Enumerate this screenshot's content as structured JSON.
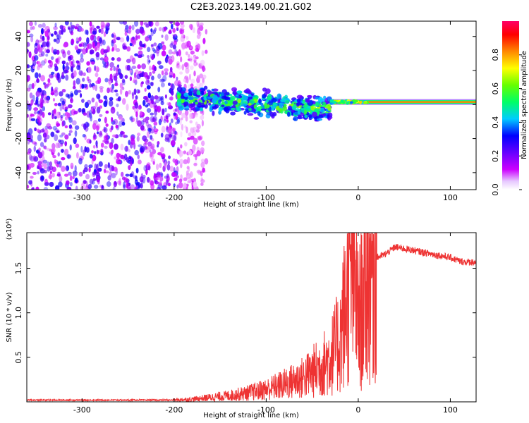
{
  "title": "C2E3.2023.149.00.21.G02",
  "chart_data": [
    {
      "type": "heatmap",
      "panel": "spectrogram",
      "xlabel": "Height of straight line (km)",
      "ylabel": "Frequency (Hz)",
      "xlim": [
        -360,
        128
      ],
      "ylim": [
        -50,
        49
      ],
      "xticks": [
        -300,
        -200,
        -100,
        0,
        100
      ],
      "xtick_labels": [
        "-300",
        "-200",
        "-100",
        "0",
        "100"
      ],
      "yticks": [
        -40,
        -20,
        0,
        20,
        40
      ],
      "ytick_labels": [
        "-40",
        "-20",
        "0",
        "20",
        "40"
      ],
      "colorbar": {
        "label": "Normalized spectral amplitude",
        "range": [
          0,
          1
        ],
        "ticks": [
          0.0,
          0.2,
          0.4,
          0.6,
          0.8
        ],
        "tick_labels": [
          "0.0",
          "0.2",
          "0.4",
          "0.6",
          "0.8"
        ],
        "colors": [
          "#ffffff",
          "#cc00ff",
          "#6600ff",
          "#0000ff",
          "#00ccff",
          "#00ff66",
          "#66ff00",
          "#ffff00",
          "#ff8800",
          "#ff0000",
          "#ff0066"
        ]
      },
      "regions": [
        {
          "name": "noise",
          "x_range": [
            -360,
            -195
          ],
          "freq_range": [
            -50,
            49
          ],
          "amplitude": 0.12
        },
        {
          "name": "transition",
          "x_range": [
            -195,
            -30
          ],
          "center_freq_start": 4,
          "center_freq_end": -3,
          "amplitude": 0.45
        },
        {
          "name": "tone",
          "x_range": [
            -30,
            128
          ],
          "center_freq": 1.5,
          "amplitude": 0.8
        }
      ]
    },
    {
      "type": "line",
      "panel": "snr",
      "xlabel": "Height of straight line (km)",
      "ylabel": "SNR (10 * v/v)",
      "y_multiplier": "(x10⁴)",
      "xlim": [
        -360,
        128
      ],
      "ylim": [
        0,
        1.9
      ],
      "xticks": [
        -300,
        -200,
        -100,
        0,
        100
      ],
      "xtick_labels": [
        "-300",
        "-200",
        "-100",
        "0",
        "100"
      ],
      "yticks": [
        0.5,
        1.0,
        1.5
      ],
      "ytick_labels": [
        "0.5",
        "1.0",
        "1.5"
      ],
      "color": "#ee3333",
      "series": [
        {
          "name": "SNR",
          "x": [
            -360,
            -300,
            -250,
            -200,
            -180,
            -160,
            -140,
            -120,
            -100,
            -80,
            -60,
            -40,
            -30,
            -20,
            -15,
            -10,
            -5,
            0,
            5,
            10,
            15,
            20,
            30,
            40,
            60,
            80,
            100,
            110,
            115,
            128
          ],
          "y": [
            0.02,
            0.02,
            0.02,
            0.02,
            0.03,
            0.05,
            0.07,
            0.1,
            0.14,
            0.2,
            0.27,
            0.4,
            0.5,
            0.7,
            1.0,
            1.3,
            1.5,
            0.9,
            1.1,
            1.4,
            1.55,
            1.62,
            1.66,
            1.74,
            1.7,
            1.66,
            1.62,
            1.58,
            1.57,
            1.57
          ]
        }
      ]
    }
  ]
}
